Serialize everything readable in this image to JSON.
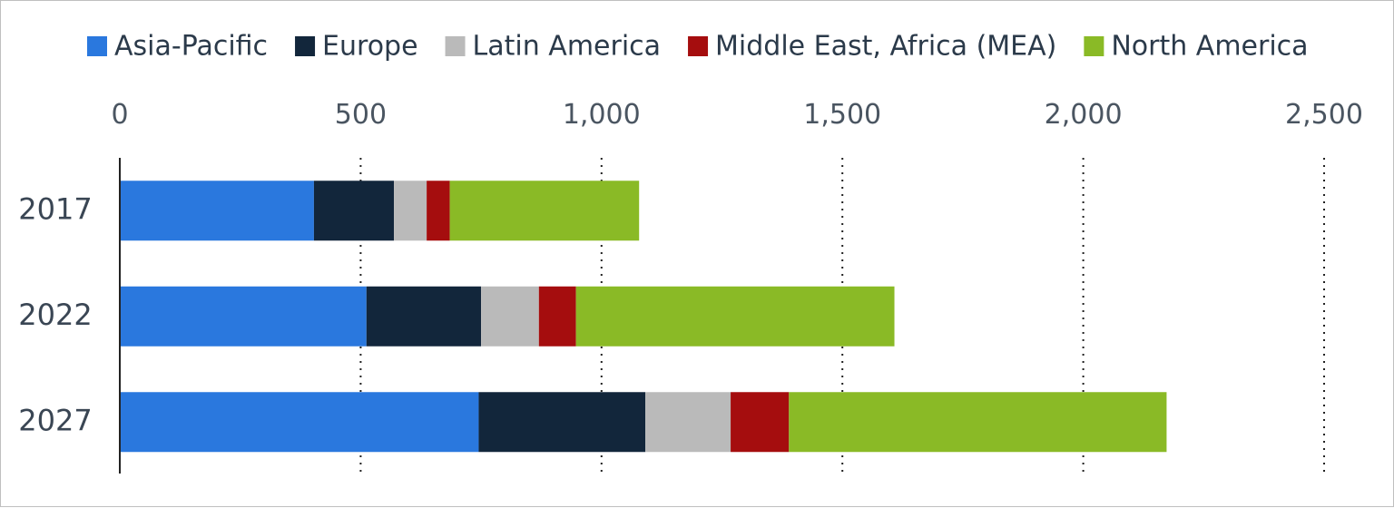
{
  "chart_data": {
    "type": "bar",
    "orientation": "horizontal",
    "stacked": true,
    "title": "",
    "xlabel": "",
    "ylabel": "",
    "categories": [
      "2017",
      "2022",
      "2027"
    ],
    "series": [
      {
        "name": "Asia-Pacific",
        "color": "#2a78de",
        "values": [
          403,
          512,
          745
        ]
      },
      {
        "name": "Europe",
        "color": "#12263b",
        "values": [
          166,
          238,
          346
        ]
      },
      {
        "name": "Latin America",
        "color": "#bababa",
        "values": [
          68,
          120,
          177
        ]
      },
      {
        "name": "Middle East, Africa (MEA)",
        "color": "#a50d0e",
        "values": [
          48,
          77,
          121
        ]
      },
      {
        "name": "North America",
        "color": "#8aba26",
        "values": [
          393,
          661,
          784
        ]
      }
    ],
    "xlim": [
      0,
      2500
    ],
    "xticks": [
      0,
      500,
      1000,
      1500,
      2000,
      2500
    ],
    "xtick_labels": [
      "0",
      "500",
      "1,000",
      "1,500",
      "2,000",
      "2,500"
    ],
    "grid": "vertical dotted",
    "legend_position": "top"
  }
}
